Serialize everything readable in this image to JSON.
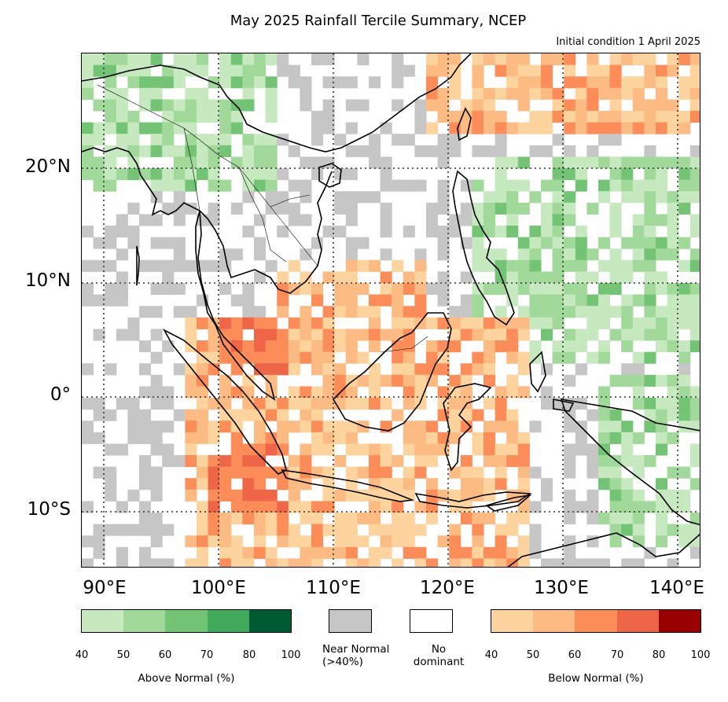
{
  "title": "May 2025 Rainfall Tercile Summary, NCEP",
  "subtitle": "Initial condition 1 April 2025",
  "map": {
    "region": "Southeast Asia",
    "lon_range": [
      88.5,
      142
    ],
    "lat_range": [
      -15,
      30
    ],
    "lat_labels": [
      "20°N",
      "10°N",
      "0°",
      "10°S"
    ],
    "lon_labels": [
      "90°E",
      "100°E",
      "110°E",
      "120°E",
      "130°E",
      "140°E"
    ],
    "gridline_style": "dotted"
  },
  "legend": {
    "above_normal": {
      "label": "Above Normal (%)",
      "ticks": [
        "40",
        "50",
        "60",
        "70",
        "80",
        "100"
      ],
      "colors": [
        "#c7e9c0",
        "#a1d99b",
        "#74c476",
        "#41ab5d",
        "#005a32"
      ]
    },
    "near_normal": {
      "label_line1": "Near Normal",
      "label_line2": "(>40%)",
      "color": "#c6c6c6"
    },
    "no_dominant": {
      "label_line1": "No",
      "label_line2": "dominant",
      "color": "#ffffff"
    },
    "below_normal": {
      "label": "Below Normal (%)",
      "ticks": [
        "40",
        "50",
        "60",
        "70",
        "80",
        "100"
      ],
      "colors": [
        "#fdd49e",
        "#fdbb84",
        "#fc8d59",
        "#ef6548",
        "#990000"
      ]
    }
  }
}
